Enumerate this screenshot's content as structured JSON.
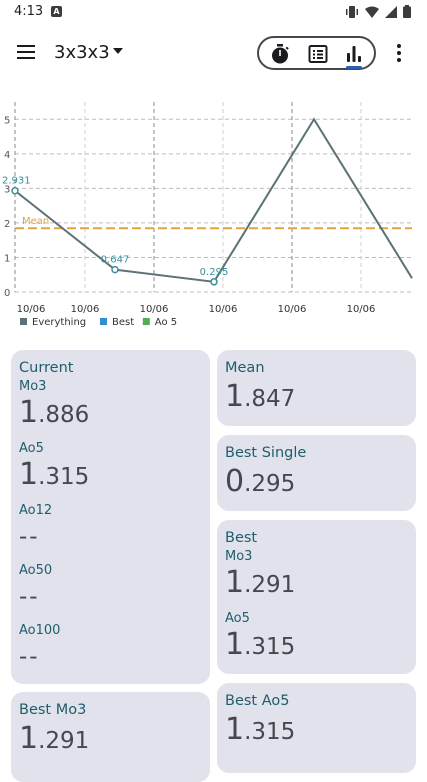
{
  "status_bar": {
    "time": "4:13",
    "notif_letter": "A"
  },
  "app_bar": {
    "title": "3x3x3"
  },
  "chart_data": {
    "type": "line",
    "y_ticks": [
      0,
      1,
      2,
      3,
      4,
      5
    ],
    "x_tick_labels": [
      "10/06",
      "10/06",
      "10/06",
      "10/06",
      "10/06",
      "10/06"
    ],
    "series": [
      {
        "name": "Everything",
        "color": "#5b7277",
        "values": [
          2.931,
          0.647,
          0.295,
          5.0,
          0.4
        ]
      }
    ],
    "ylim": [
      0,
      5.5
    ],
    "mean_label": "Mean",
    "mean_value": 1.847,
    "mean_color": "#e3a33a",
    "point_labels": [
      "2.931",
      "0.647",
      "0.295"
    ],
    "legend": [
      {
        "name": "Everything",
        "color": "#5b7277"
      },
      {
        "name": "Best",
        "color": "#2f8fd1"
      },
      {
        "name": "Ao 5",
        "color": "#4caf50"
      }
    ]
  },
  "cards": {
    "current": {
      "title": "Current",
      "mo3_label": "Mo3",
      "mo3_first": "1",
      "mo3_rest": ".886",
      "ao5_label": "Ao5",
      "ao5_first": "1",
      "ao5_rest": ".315",
      "ao12_label": "Ao12",
      "ao12_value": "--",
      "ao50_label": "Ao50",
      "ao50_value": "--",
      "ao100_label": "Ao100",
      "ao100_value": "--"
    },
    "mean": {
      "title": "Mean",
      "first": "1",
      "rest": ".847"
    },
    "best_single": {
      "title": "Best Single",
      "first": "0",
      "rest": ".295"
    },
    "best": {
      "title": "Best",
      "mo3_label": "Mo3",
      "mo3_first": "1",
      "mo3_rest": ".291",
      "ao5_label": "Ao5",
      "ao5_first": "1",
      "ao5_rest": ".315"
    },
    "best_mo3": {
      "title": "Best Mo3",
      "first": "1",
      "rest": ".291"
    },
    "best_ao5": {
      "title": "Best Ao5",
      "first": "1",
      "rest": ".315"
    }
  }
}
